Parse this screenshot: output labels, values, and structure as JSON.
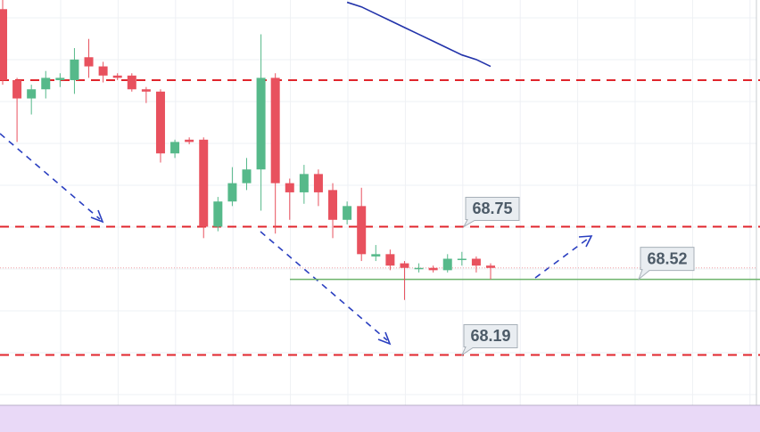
{
  "chart_data": {
    "type": "candlestick",
    "ylim": [
      67.97,
      69.74
    ],
    "up_color": "#56b98a",
    "down_color": "#e8515e",
    "open": [
      69.7,
      69.39,
      69.31,
      69.35,
      69.39,
      69.39,
      69.49,
      69.45,
      69.41,
      69.41,
      69.35,
      69.34,
      69.07,
      69.13,
      69.13,
      68.75,
      68.86,
      68.94,
      69.0,
      69.4,
      68.94,
      68.9,
      68.98,
      68.91,
      68.78,
      68.84,
      68.62,
      68.63,
      68.59,
      68.57,
      68.57,
      68.56,
      68.61,
      68.61,
      68.58
    ],
    "high": [
      69.74,
      69.4,
      69.37,
      69.43,
      69.42,
      69.53,
      69.57,
      69.47,
      69.42,
      69.42,
      69.36,
      69.35,
      69.13,
      69.14,
      69.14,
      68.88,
      69.01,
      69.05,
      69.59,
      69.42,
      68.96,
      69.02,
      69.0,
      68.94,
      68.86,
      68.92,
      68.67,
      68.65,
      68.6,
      68.59,
      68.58,
      68.63,
      68.64,
      68.62,
      68.59
    ],
    "low": [
      69.37,
      69.12,
      69.24,
      69.31,
      69.36,
      69.33,
      69.4,
      69.38,
      69.39,
      69.34,
      69.29,
      69.03,
      69.05,
      69.11,
      68.7,
      68.73,
      68.84,
      68.91,
      68.82,
      68.72,
      68.78,
      68.85,
      68.84,
      68.7,
      68.76,
      68.6,
      68.6,
      68.56,
      68.43,
      68.55,
      68.55,
      68.55,
      68.58,
      68.55,
      68.52
    ],
    "close": [
      69.39,
      69.31,
      69.35,
      69.4,
      69.4,
      69.48,
      69.45,
      69.41,
      69.4,
      69.35,
      69.34,
      69.07,
      69.12,
      69.12,
      68.75,
      68.86,
      68.94,
      69.0,
      69.4,
      68.94,
      68.9,
      68.98,
      68.9,
      68.78,
      68.84,
      68.63,
      68.63,
      68.58,
      68.57,
      68.57,
      68.56,
      68.61,
      68.61,
      68.58,
      68.57
    ],
    "moving_average": {
      "color": "#2233aa",
      "values": [
        null,
        null,
        null,
        null,
        null,
        null,
        null,
        null,
        null,
        null,
        null,
        null,
        null,
        null,
        null,
        null,
        null,
        null,
        null,
        null,
        null,
        null,
        null,
        null,
        69.73,
        69.71,
        69.68,
        69.65,
        69.62,
        69.59,
        69.56,
        69.53,
        69.5,
        69.48,
        69.45
      ]
    },
    "red_levels": [
      69.39,
      68.75,
      68.19
    ],
    "support_level": 68.52
  }
}
